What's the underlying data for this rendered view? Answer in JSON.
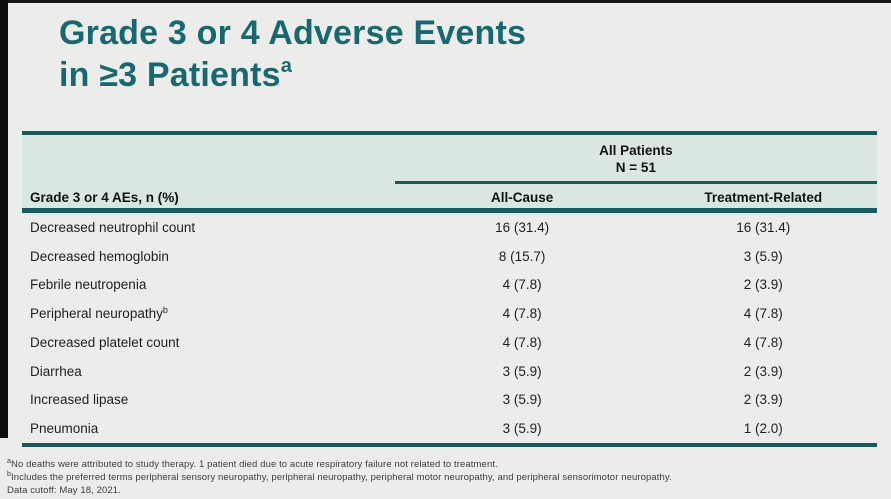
{
  "slide": {
    "title_line1": "Grade 3 or 4 Adverse Events",
    "title_line2": "in ≥3 Patients",
    "title_sup": "a"
  },
  "table": {
    "spanner": {
      "line1": "All Patients",
      "line2": "N = 51"
    },
    "columns": {
      "label": "Grade 3 or 4 AEs, n (%)",
      "all_cause": "All-Cause",
      "treatment_related": "Treatment-Related"
    },
    "rows": [
      {
        "label": "Decreased neutrophil count",
        "sup": "",
        "all_cause": "16 (31.4)",
        "treatment_related": "16 (31.4)"
      },
      {
        "label": "Decreased hemoglobin",
        "sup": "",
        "all_cause": "8 (15.7)",
        "treatment_related": "3 (5.9)"
      },
      {
        "label": "Febrile neutropenia",
        "sup": "",
        "all_cause": "4 (7.8)",
        "treatment_related": "2 (3.9)"
      },
      {
        "label": "Peripheral neuropathy",
        "sup": "b",
        "all_cause": "4 (7.8)",
        "treatment_related": "4 (7.8)"
      },
      {
        "label": "Decreased platelet count",
        "sup": "",
        "all_cause": "4 (7.8)",
        "treatment_related": "4 (7.8)"
      },
      {
        "label": "Diarrhea",
        "sup": "",
        "all_cause": "3 (5.9)",
        "treatment_related": "2 (3.9)"
      },
      {
        "label": "Increased lipase",
        "sup": "",
        "all_cause": "3 (5.9)",
        "treatment_related": "2 (3.9)"
      },
      {
        "label": "Pneumonia",
        "sup": "",
        "all_cause": "3 (5.9)",
        "treatment_related": "1 (2.0)"
      }
    ]
  },
  "footnotes": {
    "note_a_sup": "a",
    "note_a": "No deaths were attributed to study therapy. 1 patient died due to acute respiratory failure not related to treatment.",
    "note_b_sup": "b",
    "note_b": "Includes the preferred terms peripheral sensory neuropathy, peripheral neuropathy, peripheral motor neuropathy, and peripheral sensorimotor neuropathy.",
    "data_cutoff": "Data cutoff: May 18, 2021."
  },
  "colors": {
    "accent_teal_dark": "#155b60",
    "title_teal": "#17696f",
    "header_mint": "#d9e6e2",
    "page_background": "#ececeb",
    "edge_black": "#0d0d0d"
  }
}
